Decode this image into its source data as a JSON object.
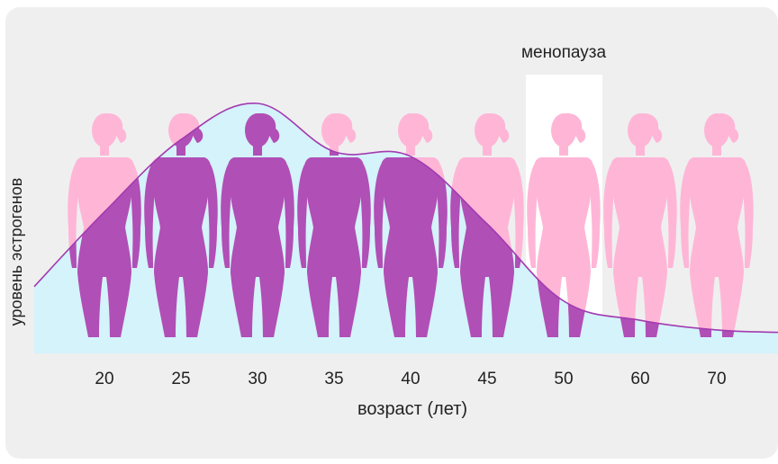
{
  "chart_data": {
    "type": "area",
    "title": "",
    "xlabel": "возраст (лет)",
    "ylabel": "уровень эстрогенов",
    "categories": [
      "20",
      "25",
      "30",
      "35",
      "40",
      "45",
      "50",
      "60",
      "70"
    ],
    "highlight": {
      "category": "50",
      "label": "менопауза"
    },
    "series": [
      {
        "name": "",
        "values": [
          0.55,
          0.85,
          1.0,
          0.8,
          0.78,
          0.5,
          0.18,
          0.1,
          0.06
        ]
      }
    ],
    "ylim": [
      0,
      1
    ],
    "grid": false,
    "legend": "none",
    "colors": {
      "background": "#efeff0",
      "area_fill": "#d4f3fb",
      "curve": "#a23bb0",
      "figure_above": "#ffb6d6",
      "figure_inside": "#b04fb6",
      "menopause_band": "#ffffff",
      "text": "#222222"
    }
  }
}
